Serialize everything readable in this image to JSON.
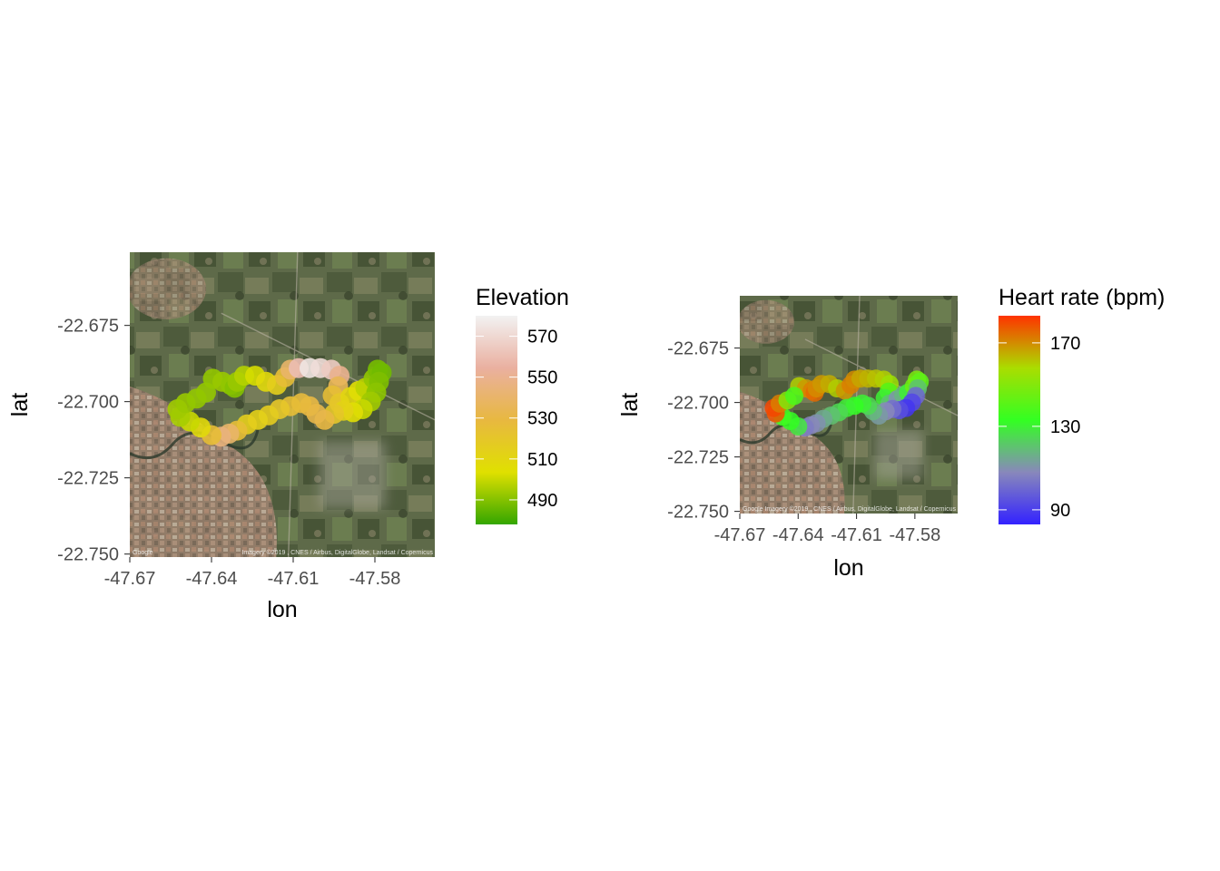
{
  "chart_data": [
    {
      "type": "scatter",
      "subtype": "map-track",
      "title": "",
      "xlabel": "lon",
      "ylabel": "lat",
      "xlim": [
        -47.67,
        -47.558
      ],
      "ylim": [
        -22.751,
        -22.651
      ],
      "xticks": [
        -47.67,
        -47.64,
        -47.61,
        -47.58
      ],
      "xtick_labels": [
        "-47.67",
        "-47.64",
        "-47.61",
        "-47.58"
      ],
      "yticks": [
        -22.675,
        -22.7,
        -22.725,
        -22.75
      ],
      "ytick_labels": [
        "-22.675",
        "-22.700",
        "-22.725",
        "-22.750"
      ],
      "basemap": "satellite",
      "basemap_credit": "Google",
      "basemap_attribution": "Imagery ©2019 , CNES / Airbus, DigitalGlobe, Landsat / Copernicus",
      "legend": {
        "title": "Elevation",
        "placement": "right",
        "type": "gradient",
        "range": [
          478,
          580
        ],
        "breaks": [
          490,
          510,
          530,
          550,
          570
        ],
        "break_labels": [
          "490",
          "510",
          "530",
          "550",
          "570"
        ],
        "colors": [
          "#33a600",
          "#e0e000",
          "#e8b840",
          "#eab0a0",
          "#f2f2f2"
        ]
      },
      "track": [
        {
          "lon": -47.6395,
          "lat": -22.6925,
          "value": 492
        },
        {
          "lon": -47.636,
          "lat": -22.6935,
          "value": 493
        },
        {
          "lon": -47.633,
          "lat": -22.6945,
          "value": 492
        },
        {
          "lon": -47.6315,
          "lat": -22.6955,
          "value": 490
        },
        {
          "lon": -47.6305,
          "lat": -22.6935,
          "value": 493
        },
        {
          "lon": -47.628,
          "lat": -22.6915,
          "value": 497
        },
        {
          "lon": -47.624,
          "lat": -22.6915,
          "value": 502
        },
        {
          "lon": -47.62,
          "lat": -22.6935,
          "value": 508
        },
        {
          "lon": -47.616,
          "lat": -22.6945,
          "value": 515
        },
        {
          "lon": -47.613,
          "lat": -22.692,
          "value": 525
        },
        {
          "lon": -47.611,
          "lat": -22.6895,
          "value": 540
        },
        {
          "lon": -47.608,
          "lat": -22.689,
          "value": 560
        },
        {
          "lon": -47.604,
          "lat": -22.689,
          "value": 575
        },
        {
          "lon": -47.6,
          "lat": -22.689,
          "value": 572
        },
        {
          "lon": -47.596,
          "lat": -22.6895,
          "value": 565
        },
        {
          "lon": -47.593,
          "lat": -22.6915,
          "value": 550
        },
        {
          "lon": -47.5935,
          "lat": -22.695,
          "value": 535
        },
        {
          "lon": -47.5955,
          "lat": -22.698,
          "value": 525
        },
        {
          "lon": -47.593,
          "lat": -22.7005,
          "value": 520
        },
        {
          "lon": -47.589,
          "lat": -22.6985,
          "value": 510
        },
        {
          "lon": -47.586,
          "lat": -22.6965,
          "value": 505
        },
        {
          "lon": -47.5835,
          "lat": -22.6955,
          "value": 498
        },
        {
          "lon": -47.5805,
          "lat": -22.6925,
          "value": 492
        },
        {
          "lon": -47.579,
          "lat": -22.6895,
          "value": 488
        },
        {
          "lon": -47.5775,
          "lat": -22.6905,
          "value": 487
        },
        {
          "lon": -47.5785,
          "lat": -22.6935,
          "value": 489
        },
        {
          "lon": -47.5795,
          "lat": -22.697,
          "value": 491
        },
        {
          "lon": -47.5815,
          "lat": -22.7,
          "value": 494
        },
        {
          "lon": -47.5845,
          "lat": -22.7025,
          "value": 500
        },
        {
          "lon": -47.588,
          "lat": -22.7035,
          "value": 505
        },
        {
          "lon": -47.5915,
          "lat": -22.703,
          "value": 512
        },
        {
          "lon": -47.595,
          "lat": -22.704,
          "value": 520
        },
        {
          "lon": -47.5985,
          "lat": -22.706,
          "value": 530
        },
        {
          "lon": -47.6015,
          "lat": -22.704,
          "value": 532
        },
        {
          "lon": -47.604,
          "lat": -22.7015,
          "value": 530
        },
        {
          "lon": -47.607,
          "lat": -22.7005,
          "value": 528
        },
        {
          "lon": -47.611,
          "lat": -22.7015,
          "value": 525
        },
        {
          "lon": -47.615,
          "lat": -22.7025,
          "value": 520
        },
        {
          "lon": -47.619,
          "lat": -22.7045,
          "value": 516
        },
        {
          "lon": -47.623,
          "lat": -22.706,
          "value": 514
        },
        {
          "lon": -47.627,
          "lat": -22.7075,
          "value": 515
        },
        {
          "lon": -47.6305,
          "lat": -22.7095,
          "value": 525
        },
        {
          "lon": -47.6335,
          "lat": -22.7105,
          "value": 540
        },
        {
          "lon": -47.6365,
          "lat": -22.7115,
          "value": 545
        },
        {
          "lon": -47.64,
          "lat": -22.711,
          "value": 525
        },
        {
          "lon": -47.644,
          "lat": -22.7085,
          "value": 508
        },
        {
          "lon": -47.648,
          "lat": -22.7065,
          "value": 500
        },
        {
          "lon": -47.6515,
          "lat": -22.705,
          "value": 495
        },
        {
          "lon": -47.6525,
          "lat": -22.7025,
          "value": 494
        },
        {
          "lon": -47.6495,
          "lat": -22.7005,
          "value": 493
        },
        {
          "lon": -47.6455,
          "lat": -22.699,
          "value": 492
        },
        {
          "lon": -47.642,
          "lat": -22.697,
          "value": 492
        }
      ]
    },
    {
      "type": "scatter",
      "subtype": "map-track",
      "title": "",
      "xlabel": "lon",
      "ylabel": "lat",
      "xlim": [
        -47.67,
        -47.558
      ],
      "ylim": [
        -22.751,
        -22.651
      ],
      "xticks": [
        -47.67,
        -47.64,
        -47.61,
        -47.58
      ],
      "xtick_labels": [
        "-47.67",
        "-47.64",
        "-47.61",
        "-47.58"
      ],
      "yticks": [
        -22.675,
        -22.7,
        -22.725,
        -22.75
      ],
      "ytick_labels": [
        "-22.675",
        "-22.700",
        "-22.725",
        "-22.750"
      ],
      "basemap": "satellite",
      "basemap_credit": "Google",
      "basemap_attribution": "Imagery ©2019 , CNES / Airbus, DigitalGlobe, Landsat / Copernicus",
      "legend": {
        "title": "Heart rate (bpm)",
        "placement": "right",
        "type": "gradient",
        "range": [
          83,
          183
        ],
        "breaks": [
          90,
          130,
          170
        ],
        "break_labels": [
          "90",
          "130",
          "170"
        ],
        "colors": [
          "#3322ff",
          "#8888bb",
          "#33ff22",
          "#aadd00",
          "#ff3300"
        ]
      },
      "track": [
        {
          "lon": -47.6395,
          "lat": -22.6925,
          "value": 160
        },
        {
          "lon": -47.636,
          "lat": -22.6935,
          "value": 168
        },
        {
          "lon": -47.633,
          "lat": -22.6945,
          "value": 172
        },
        {
          "lon": -47.6315,
          "lat": -22.6955,
          "value": 175
        },
        {
          "lon": -47.6305,
          "lat": -22.6935,
          "value": 170
        },
        {
          "lon": -47.628,
          "lat": -22.6915,
          "value": 168
        },
        {
          "lon": -47.624,
          "lat": -22.6915,
          "value": 165
        },
        {
          "lon": -47.62,
          "lat": -22.6935,
          "value": 160
        },
        {
          "lon": -47.616,
          "lat": -22.6945,
          "value": 168
        },
        {
          "lon": -47.613,
          "lat": -22.692,
          "value": 172
        },
        {
          "lon": -47.611,
          "lat": -22.6895,
          "value": 170
        },
        {
          "lon": -47.608,
          "lat": -22.689,
          "value": 166
        },
        {
          "lon": -47.604,
          "lat": -22.689,
          "value": 164
        },
        {
          "lon": -47.6,
          "lat": -22.689,
          "value": 162
        },
        {
          "lon": -47.596,
          "lat": -22.6895,
          "value": 160
        },
        {
          "lon": -47.593,
          "lat": -22.6915,
          "value": 155
        },
        {
          "lon": -47.5935,
          "lat": -22.695,
          "value": 140
        },
        {
          "lon": -47.5955,
          "lat": -22.698,
          "value": 130
        },
        {
          "lon": -47.593,
          "lat": -22.7005,
          "value": 120
        },
        {
          "lon": -47.589,
          "lat": -22.6985,
          "value": 110
        },
        {
          "lon": -47.586,
          "lat": -22.6965,
          "value": 118
        },
        {
          "lon": -47.5835,
          "lat": -22.6955,
          "value": 130
        },
        {
          "lon": -47.5805,
          "lat": -22.6925,
          "value": 145
        },
        {
          "lon": -47.579,
          "lat": -22.6895,
          "value": 148
        },
        {
          "lon": -47.5775,
          "lat": -22.6905,
          "value": 142
        },
        {
          "lon": -47.5785,
          "lat": -22.6935,
          "value": 120
        },
        {
          "lon": -47.5795,
          "lat": -22.697,
          "value": 100
        },
        {
          "lon": -47.5815,
          "lat": -22.7,
          "value": 92
        },
        {
          "lon": -47.5845,
          "lat": -22.7025,
          "value": 88
        },
        {
          "lon": -47.588,
          "lat": -22.7035,
          "value": 94
        },
        {
          "lon": -47.5915,
          "lat": -22.703,
          "value": 102
        },
        {
          "lon": -47.595,
          "lat": -22.704,
          "value": 108
        },
        {
          "lon": -47.5985,
          "lat": -22.706,
          "value": 112
        },
        {
          "lon": -47.6015,
          "lat": -22.704,
          "value": 118
        },
        {
          "lon": -47.604,
          "lat": -22.7015,
          "value": 125
        },
        {
          "lon": -47.607,
          "lat": -22.7005,
          "value": 130
        },
        {
          "lon": -47.611,
          "lat": -22.7015,
          "value": 133
        },
        {
          "lon": -47.615,
          "lat": -22.7025,
          "value": 130
        },
        {
          "lon": -47.619,
          "lat": -22.7045,
          "value": 125
        },
        {
          "lon": -47.623,
          "lat": -22.706,
          "value": 120
        },
        {
          "lon": -47.627,
          "lat": -22.7075,
          "value": 115
        },
        {
          "lon": -47.6305,
          "lat": -22.7095,
          "value": 110
        },
        {
          "lon": -47.6335,
          "lat": -22.7105,
          "value": 108
        },
        {
          "lon": -47.6365,
          "lat": -22.7115,
          "value": 105
        },
        {
          "lon": -47.64,
          "lat": -22.711,
          "value": 128
        },
        {
          "lon": -47.644,
          "lat": -22.7085,
          "value": 133
        },
        {
          "lon": -47.648,
          "lat": -22.7065,
          "value": 135
        },
        {
          "lon": -47.6515,
          "lat": -22.705,
          "value": 178
        },
        {
          "lon": -47.6525,
          "lat": -22.7025,
          "value": 180
        },
        {
          "lon": -47.6495,
          "lat": -22.7005,
          "value": 172
        },
        {
          "lon": -47.6455,
          "lat": -22.699,
          "value": 150
        },
        {
          "lon": -47.642,
          "lat": -22.697,
          "value": 138
        }
      ]
    }
  ]
}
